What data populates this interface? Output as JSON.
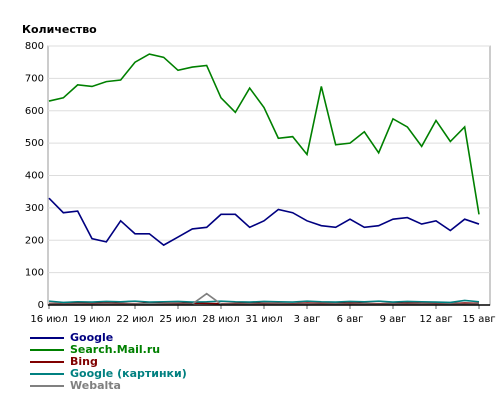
{
  "chart_data": {
    "type": "line",
    "title": "Количество",
    "categories": [
      "16 июл",
      null,
      null,
      "19 июл",
      null,
      null,
      "22 июл",
      null,
      null,
      "25 июл",
      null,
      null,
      "28 июл",
      null,
      null,
      "31 июл",
      null,
      null,
      "3 авг",
      null,
      null,
      "6 авг",
      null,
      null,
      "9 авг",
      null,
      null,
      "12 авг",
      null,
      null,
      "15 авг"
    ],
    "ylim": [
      0,
      800
    ],
    "yticks": [
      0,
      100,
      200,
      300,
      400,
      500,
      600,
      700,
      800
    ],
    "grid": true,
    "series": [
      {
        "name": "Google",
        "color": "#000080",
        "values": [
          330,
          285,
          290,
          205,
          195,
          260,
          220,
          220,
          185,
          210,
          235,
          240,
          280,
          280,
          240,
          260,
          295,
          285,
          260,
          245,
          240,
          265,
          240,
          245,
          265,
          270,
          250,
          260,
          230,
          265,
          250
        ]
      },
      {
        "name": "Search.Mail.ru",
        "color": "#008000",
        "values": [
          630,
          640,
          680,
          675,
          690,
          695,
          750,
          775,
          765,
          725,
          735,
          740,
          640,
          595,
          670,
          610,
          515,
          520,
          465,
          675,
          495,
          500,
          535,
          470,
          575,
          550,
          490,
          570,
          505,
          550,
          280
        ]
      },
      {
        "name": "Bing",
        "color": "#800000",
        "values": [
          5,
          4,
          6,
          5,
          6,
          5,
          4,
          6,
          5,
          5,
          6,
          5,
          4,
          5,
          6,
          5,
          5,
          4,
          6,
          5,
          5,
          6,
          5,
          4,
          5,
          6,
          5,
          5,
          4,
          6,
          5
        ]
      },
      {
        "name": "Google (картинки)",
        "color": "#008080",
        "values": [
          12,
          8,
          10,
          9,
          11,
          10,
          12,
          9,
          10,
          11,
          9,
          10,
          12,
          10,
          9,
          11,
          10,
          9,
          12,
          10,
          9,
          11,
          10,
          12,
          9,
          11,
          10,
          9,
          8,
          14,
          10
        ]
      },
      {
        "name": "Webalta",
        "color": "#808080",
        "values": [
          3,
          2,
          3,
          2,
          3,
          2,
          3,
          4,
          3,
          2,
          3,
          35,
          3,
          2,
          3,
          2,
          3,
          2,
          3,
          2,
          3,
          2,
          3,
          2,
          3,
          2,
          3,
          2,
          3,
          2,
          3
        ]
      }
    ]
  }
}
